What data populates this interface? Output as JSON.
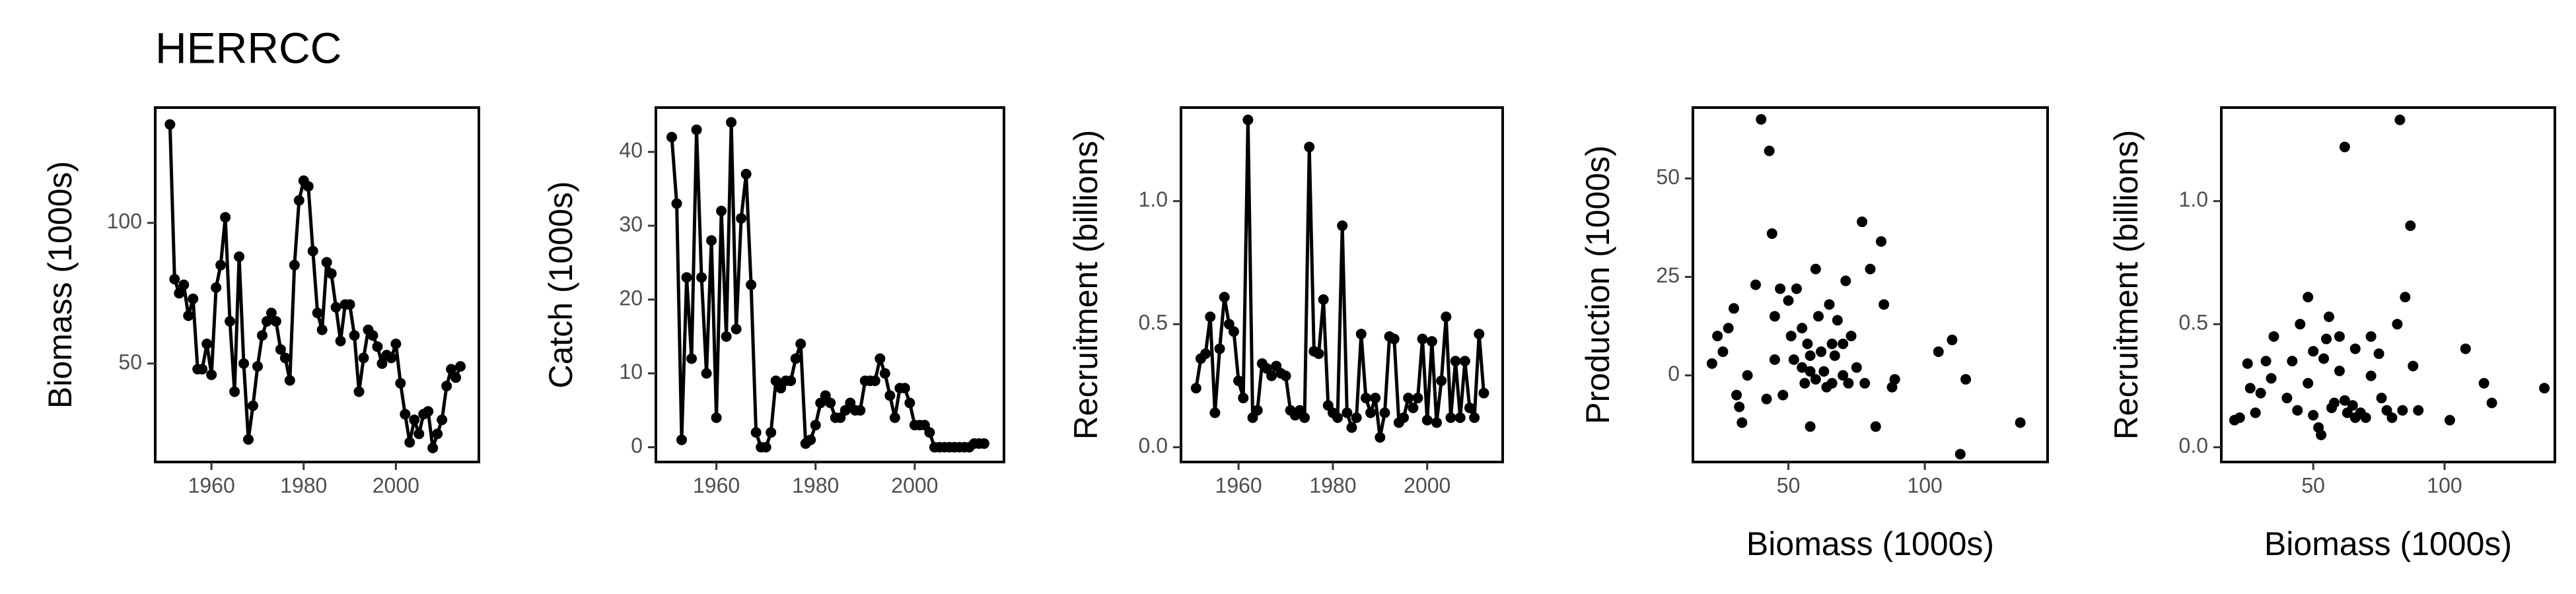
{
  "title": "HERRCC",
  "chart_data": [
    {
      "type": "line",
      "ylabel": "Biomass (1000s)",
      "x": [
        1951,
        1952,
        1953,
        1954,
        1955,
        1956,
        1957,
        1958,
        1959,
        1960,
        1961,
        1962,
        1963,
        1964,
        1965,
        1966,
        1967,
        1968,
        1969,
        1970,
        1971,
        1972,
        1973,
        1974,
        1975,
        1976,
        1977,
        1978,
        1979,
        1980,
        1981,
        1982,
        1983,
        1984,
        1985,
        1986,
        1987,
        1988,
        1989,
        1990,
        1991,
        1992,
        1993,
        1994,
        1995,
        1996,
        1997,
        1998,
        1999,
        2000,
        2001,
        2002,
        2003,
        2004,
        2005,
        2006,
        2007,
        2008,
        2009,
        2010,
        2011,
        2012,
        2013,
        2014
      ],
      "values": [
        135,
        80,
        75,
        78,
        67,
        73,
        48,
        48,
        57,
        46,
        77,
        85,
        102,
        65,
        40,
        88,
        50,
        23,
        35,
        49,
        60,
        65,
        68,
        65,
        55,
        52,
        44,
        85,
        108,
        115,
        113,
        90,
        68,
        62,
        86,
        82,
        70,
        58,
        71,
        71,
        60,
        40,
        52,
        62,
        60,
        56,
        50,
        53,
        52,
        57,
        43,
        32,
        22,
        30,
        25,
        32,
        33,
        20,
        25,
        30,
        42,
        48,
        45,
        49
      ],
      "color": "#000000",
      "xlim": [
        1947.8,
        2018
      ],
      "ylim": [
        15,
        141
      ],
      "xticks": [
        1960,
        1980,
        2000
      ],
      "yticks": [
        50,
        100
      ]
    },
    {
      "type": "line",
      "ylabel": "Catch (1000s)",
      "x": [
        1951,
        1952,
        1953,
        1954,
        1955,
        1956,
        1957,
        1958,
        1959,
        1960,
        1961,
        1962,
        1963,
        1964,
        1965,
        1966,
        1967,
        1968,
        1969,
        1970,
        1971,
        1972,
        1973,
        1974,
        1975,
        1976,
        1977,
        1978,
        1979,
        1980,
        1981,
        1982,
        1983,
        1984,
        1985,
        1986,
        1987,
        1988,
        1989,
        1990,
        1991,
        1992,
        1993,
        1994,
        1995,
        1996,
        1997,
        1998,
        1999,
        2000,
        2001,
        2002,
        2003,
        2004,
        2005,
        2006,
        2007,
        2008,
        2009,
        2010,
        2011,
        2012,
        2013,
        2014
      ],
      "values": [
        42,
        33,
        1,
        23,
        12,
        43,
        23,
        10,
        28,
        4,
        32,
        15,
        44,
        16,
        31,
        37,
        22,
        2,
        0,
        0,
        2,
        9,
        8,
        9,
        9,
        12,
        14,
        0.5,
        1,
        3,
        6,
        7,
        6,
        4,
        4,
        5,
        6,
        5,
        5,
        9,
        9,
        9,
        12,
        10,
        7,
        4,
        8,
        8,
        6,
        3,
        3,
        3,
        2,
        0,
        0,
        0,
        0,
        0,
        0,
        0,
        0,
        0.5,
        0.5,
        0.5
      ],
      "color": "#000000",
      "xlim": [
        1947.8,
        2018
      ],
      "ylim": [
        -2,
        46
      ],
      "xticks": [
        1960,
        1980,
        2000
      ],
      "yticks": [
        0,
        10,
        20,
        30,
        40
      ]
    },
    {
      "type": "line",
      "ylabel": "Recruitment (billions)",
      "x": [
        1951,
        1952,
        1953,
        1954,
        1955,
        1956,
        1957,
        1958,
        1959,
        1960,
        1961,
        1962,
        1963,
        1964,
        1965,
        1966,
        1967,
        1968,
        1969,
        1970,
        1971,
        1972,
        1973,
        1974,
        1975,
        1976,
        1977,
        1978,
        1979,
        1980,
        1981,
        1982,
        1983,
        1984,
        1985,
        1986,
        1987,
        1988,
        1989,
        1990,
        1991,
        1992,
        1993,
        1994,
        1995,
        1996,
        1997,
        1998,
        1999,
        2000,
        2001,
        2002,
        2003,
        2004,
        2005,
        2006,
        2007,
        2008,
        2009,
        2010,
        2011,
        2012
      ],
      "values": [
        0.24,
        0.36,
        0.38,
        0.53,
        0.14,
        0.4,
        0.61,
        0.5,
        0.47,
        0.27,
        0.2,
        1.33,
        0.12,
        0.15,
        0.34,
        0.32,
        0.29,
        0.33,
        0.3,
        0.29,
        0.15,
        0.13,
        0.15,
        0.12,
        1.22,
        0.39,
        0.38,
        0.6,
        0.17,
        0.14,
        0.12,
        0.9,
        0.14,
        0.08,
        0.12,
        0.46,
        0.2,
        0.14,
        0.2,
        0.04,
        0.14,
        0.45,
        0.44,
        0.1,
        0.12,
        0.2,
        0.16,
        0.2,
        0.44,
        0.11,
        0.43,
        0.1,
        0.27,
        0.53,
        0.12,
        0.35,
        0.12,
        0.35,
        0.16,
        0.12,
        0.46,
        0.22
      ],
      "color": "#000000",
      "xlim": [
        1947.8,
        2016
      ],
      "ylim": [
        -0.06,
        1.38
      ],
      "xticks": [
        1960,
        1980,
        2000
      ],
      "yticks": [
        {
          "value": 0,
          "label": "0.0"
        },
        {
          "value": 0.5,
          "label": "0.5"
        },
        {
          "value": 1,
          "label": "1.0"
        }
      ]
    },
    {
      "type": "scatter",
      "xlabel": "Biomass (1000s)",
      "ylabel": "Production (1000s)",
      "x": [
        22,
        24,
        26,
        28,
        30,
        31,
        32,
        33,
        38,
        40,
        43,
        44,
        42,
        45,
        47,
        48,
        50,
        51,
        52,
        53,
        55,
        55,
        56,
        57,
        58,
        58,
        60,
        61,
        62,
        63,
        64,
        65,
        66,
        67,
        68,
        70,
        71,
        72,
        73,
        75,
        77,
        78,
        80,
        82,
        84,
        85,
        88,
        89,
        105,
        110,
        115,
        113,
        135,
        35,
        45,
        60,
        66,
        70,
        58
      ],
      "values": [
        3,
        10,
        6,
        12,
        17,
        -5,
        -8,
        -12,
        23,
        65,
        57,
        36,
        -6,
        15,
        22,
        -5,
        19,
        10,
        4,
        22,
        12,
        2,
        -2,
        8,
        5,
        -13,
        27,
        15,
        6,
        1,
        -3,
        18,
        8,
        5,
        14,
        0,
        24,
        -2,
        10,
        2,
        39,
        -2,
        27,
        -13,
        34,
        18,
        -3,
        -1,
        6,
        9,
        -1,
        -20,
        -12,
        0,
        4,
        -1,
        -2,
        8,
        1
      ],
      "color": "#000000",
      "xlim": [
        15,
        145
      ],
      "ylim": [
        -22,
        68
      ],
      "xticks": [
        50,
        100
      ],
      "yticks": [
        0,
        25,
        50
      ]
    },
    {
      "type": "scatter",
      "xlabel": "Biomass (1000s)",
      "ylabel": "Recruitment (billions)",
      "x": [
        20,
        22,
        25,
        26,
        28,
        30,
        32,
        34,
        35,
        40,
        42,
        44,
        45,
        48,
        48,
        50,
        50,
        52,
        53,
        54,
        55,
        56,
        57,
        58,
        60,
        62,
        62,
        63,
        65,
        66,
        68,
        70,
        72,
        75,
        76,
        78,
        80,
        82,
        83,
        84,
        85,
        87,
        88,
        90,
        102,
        108,
        115,
        118,
        138,
        66,
        72,
        60
      ],
      "values": [
        0.11,
        0.12,
        0.34,
        0.24,
        0.14,
        0.22,
        0.35,
        0.28,
        0.45,
        0.2,
        0.35,
        0.15,
        0.5,
        0.61,
        0.26,
        0.39,
        0.13,
        0.08,
        0.05,
        0.36,
        0.44,
        0.53,
        0.16,
        0.18,
        0.45,
        1.22,
        0.19,
        0.14,
        0.17,
        0.4,
        0.14,
        0.12,
        0.45,
        0.38,
        0.2,
        0.15,
        0.12,
        0.5,
        1.33,
        0.15,
        0.61,
        0.9,
        0.33,
        0.15,
        0.11,
        0.4,
        0.26,
        0.18,
        0.24,
        0.12,
        0.29,
        0.31
      ],
      "color": "#000000",
      "xlim": [
        15,
        142
      ],
      "ylim": [
        -0.06,
        1.38
      ],
      "xticks": [
        50,
        100
      ],
      "yticks": [
        {
          "value": 0,
          "label": "0.0"
        },
        {
          "value": 0.5,
          "label": "0.5"
        },
        {
          "value": 1,
          "label": "1.0"
        }
      ]
    }
  ]
}
